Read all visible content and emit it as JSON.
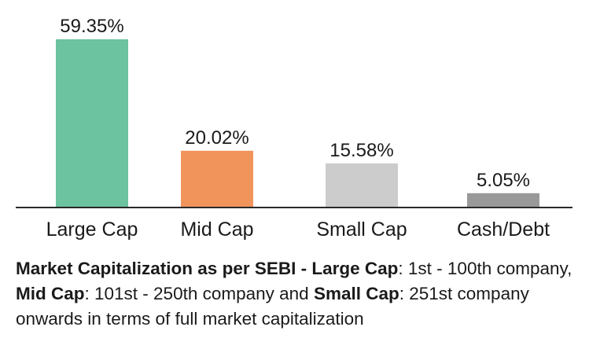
{
  "chart_data": {
    "type": "bar",
    "categories": [
      "Large Cap",
      "Mid Cap",
      "Small Cap",
      "Cash/Debt"
    ],
    "values": [
      59.35,
      20.02,
      15.58,
      5.05
    ],
    "value_labels": [
      "59.35%",
      "20.02%",
      "15.58%",
      "5.05%"
    ],
    "colors": [
      "#6cc39f",
      "#f0945c",
      "#cccccc",
      "#999999"
    ],
    "axis_color": "#2a2a2a",
    "ylim": [
      0,
      59.35
    ],
    "grid": false,
    "legend": "none"
  },
  "footnote": {
    "heading": "Market Capitalization as per SEBI -",
    "large_term": "Large Cap",
    "large_def": ": 1st - 100th company,",
    "mid_term": "Mid Cap",
    "mid_def": ": 101st - 250th company and",
    "small_term": "Small Cap",
    "small_def": ": 251st company onwards in terms of full market capitalization"
  }
}
